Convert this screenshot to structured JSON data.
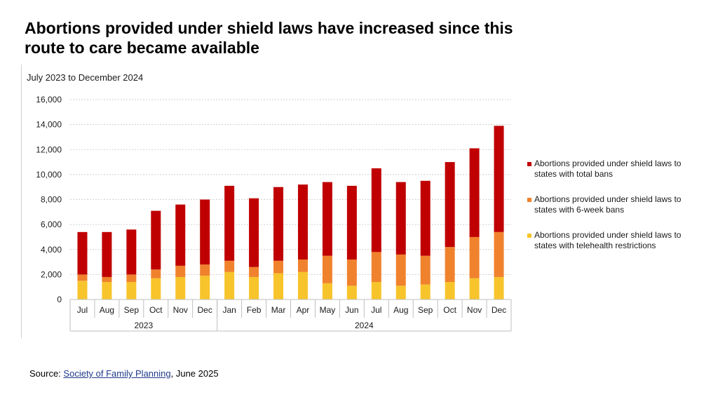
{
  "headline": "Abortions provided under shield laws have increased since this route to care became available",
  "subtitle": "July 2023 to December 2024",
  "source": {
    "prefix": "Source: ",
    "link_text": "Society of Family Planning",
    "suffix": ", June 2025"
  },
  "colors": {
    "total_bans": "#c00000",
    "six_week": "#f0822d",
    "telehealth": "#f7c42b",
    "grid": "#cfcfcf",
    "axis": "#bfbfbf"
  },
  "chart_data": {
    "type": "bar",
    "stacked": true,
    "title": "July 2023 to December 2024",
    "categories": [
      "Jul",
      "Aug",
      "Sep",
      "Oct",
      "Nov",
      "Dec",
      "Jan",
      "Feb",
      "Mar",
      "Apr",
      "May",
      "Jun",
      "Jul",
      "Aug",
      "Sep",
      "Oct",
      "Nov",
      "Dec"
    ],
    "year_groups": [
      {
        "label": "2023",
        "count": 6
      },
      {
        "label": "2024",
        "count": 12
      }
    ],
    "ylim": [
      0,
      16000
    ],
    "yticks": [
      0,
      2000,
      4000,
      6000,
      8000,
      10000,
      12000,
      14000,
      16000
    ],
    "ytick_labels": [
      "0",
      "2,000",
      "4,000",
      "6,000",
      "8,000",
      "10,000",
      "12,000",
      "14,000",
      "16,000"
    ],
    "grid": true,
    "legend_position": "right",
    "series": [
      {
        "name": "Abortions provided under shield laws to states with telehealth restrictions",
        "color_key": "telehealth",
        "values": [
          1500,
          1400,
          1400,
          1700,
          1800,
          1900,
          2200,
          1800,
          2100,
          2200,
          1300,
          1100,
          1400,
          1100,
          1200,
          1400,
          1700,
          1800
        ]
      },
      {
        "name": "Abortions provided under shield laws to states with 6-week bans",
        "color_key": "six_week",
        "values": [
          500,
          400,
          600,
          700,
          900,
          900,
          900,
          800,
          1000,
          1000,
          2200,
          2100,
          2400,
          2500,
          2300,
          2800,
          3300,
          3600
        ]
      },
      {
        "name": "Abortions provided under shield laws to states with total bans",
        "color_key": "total_bans",
        "values": [
          3400,
          3600,
          3600,
          4700,
          4900,
          5200,
          6000,
          5500,
          5900,
          6000,
          5900,
          5900,
          6700,
          5800,
          6000,
          6800,
          7100,
          8500
        ]
      }
    ]
  },
  "legend_items": [
    {
      "label": "Abortions provided under shield laws to states with total bans",
      "color_key": "total_bans"
    },
    {
      "label": "Abortions provided under shield laws to states with 6-week bans",
      "color_key": "six_week"
    },
    {
      "label": "Abortions provided under shield laws to states with telehealth restrictions",
      "color_key": "telehealth"
    }
  ]
}
